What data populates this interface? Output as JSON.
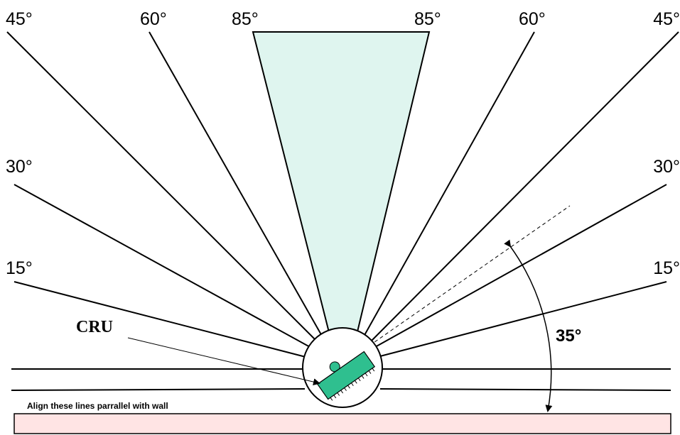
{
  "labels": {
    "left_45": "45°",
    "left_60": "60°",
    "left_85": "85°",
    "right_85": "85°",
    "right_60": "60°",
    "right_45": "45°",
    "left_30": "30°",
    "right_30": "30°",
    "left_15": "15°",
    "right_15": "15°",
    "cru": "CRU",
    "align_note": "Align these lines parrallel with wall",
    "tilt_angle": "35°"
  },
  "colors": {
    "wedge_fill": "#dff5ef",
    "wall_fill": "#ffe4e4",
    "device_fill": "#2fbf8f",
    "line": "#000000"
  }
}
